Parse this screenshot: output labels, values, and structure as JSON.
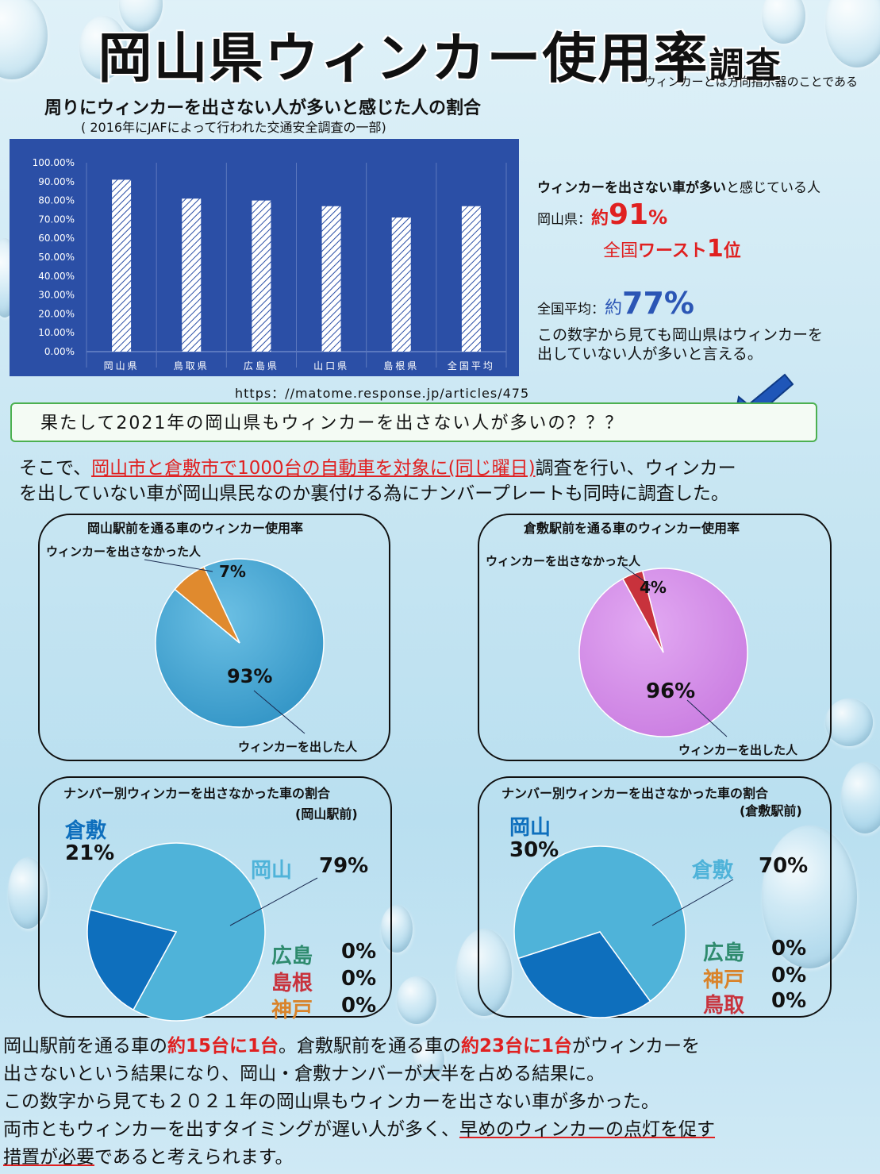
{
  "title": {
    "part1": "岡山県",
    "part2": "ウィンカー使用率",
    "part3": "調査"
  },
  "note": "ウィンカーとは方向指示器のことである",
  "chart_data": [
    {
      "type": "bar",
      "title": "周りにウィンカーを出さない人が多いと感じた人の割合",
      "subtitle": "( 2016年にJAFによって行われた交通安全調査の一部)",
      "categories": [
        "岡山県",
        "鳥取県",
        "広島県",
        "山口県",
        "島根県",
        "全国平均"
      ],
      "values": [
        91,
        81,
        80,
        77,
        71,
        77
      ],
      "yticks": [
        "100.00%",
        "90.00%",
        "80.00%",
        "70.00%",
        "60.00%",
        "50.00%",
        "40.00%",
        "30.00%",
        "20.00%",
        "10.00%",
        "0.00%"
      ],
      "ylim": [
        0,
        100
      ],
      "colors": {
        "background": "#2b4fa6",
        "bar": "#ffffff"
      }
    },
    {
      "type": "pie",
      "title": "岡山駅前を通る車のウィンカー使用率",
      "labels": [
        "ウィンカーを出した人",
        "ウィンカーを出さなかった人"
      ],
      "values": [
        93,
        7
      ],
      "value_labels": [
        "93%",
        "7%"
      ],
      "colors": [
        "#3aa0cf",
        "#e08a2e"
      ]
    },
    {
      "type": "pie",
      "title": "倉敷駅前を通る車のウィンカー使用率",
      "labels": [
        "ウィンカーを出した人",
        "ウィンカーを出さなかった人"
      ],
      "values": [
        96,
        4
      ],
      "value_labels": [
        "96%",
        "4%"
      ],
      "colors": [
        "#d58fe8",
        "#c8323c"
      ]
    },
    {
      "type": "pie",
      "title": "ナンバー別ウィンカーを出さなかった車の割合",
      "subtitle": "(岡山駅前)",
      "labels": [
        "岡山",
        "倉敷",
        "広島",
        "島根",
        "神戸"
      ],
      "values": [
        79,
        21,
        0,
        0,
        0
      ],
      "value_labels": [
        "79%",
        "21%",
        "0%",
        "0%",
        "0%"
      ],
      "colors": [
        "#4fb3d9",
        "#0e6fbd",
        "#2e8b6e",
        "#c8323c",
        "#d9832a"
      ]
    },
    {
      "type": "pie",
      "title": "ナンバー別ウィンカーを出さなかった車の割合",
      "subtitle": "(倉敷駅前)",
      "labels": [
        "倉敷",
        "岡山",
        "広島",
        "神戸",
        "鳥取"
      ],
      "values": [
        70,
        30,
        0,
        0,
        0
      ],
      "value_labels": [
        "70%",
        "30%",
        "0%",
        "0%",
        "0%"
      ],
      "colors": [
        "#4fb3d9",
        "#0e6fbd",
        "#2e8b6e",
        "#d9832a",
        "#c8323c"
      ]
    }
  ],
  "source": "https：//matome.response.jp/articles/475",
  "right_text": {
    "line1_bold": "ウィンカーを出さない車が多い",
    "line1_rest": "と感じている人",
    "okayama_label": "岡山県：",
    "okayama_prefix": "約",
    "okayama_value": "91",
    "okayama_unit": "%",
    "worst_prefix": "全国",
    "worst_bold": "ワースト",
    "worst_num": "1",
    "worst_suffix": "位",
    "avg_label": "全国平均：",
    "avg_prefix": "約",
    "avg_value": "77%",
    "conclusion1": "この数字から見ても岡山県はウィンカーを",
    "conclusion2": "出していない人が多いと言える。"
  },
  "question": "果たして2021年の岡山県もウィンカーを出さない人が多いの？？？",
  "method": {
    "p1a": "そこで、",
    "p1b": "岡山市と倉敷市で1000台の自動車を対象に(同じ曜日)",
    "p1c": "調査を行い、ウィンカー",
    "p2": "を出していない車が岡山県民なのか裏付ける為にナンバープレートも同時に調査した。"
  },
  "bottom": {
    "l1a": "岡山駅前を通る車の",
    "l1b": "約15台に1台",
    "l1c": "。倉敷駅前を通る車の",
    "l1d": "約23台に1台",
    "l1e": "がウィンカーを",
    "l2": "出さないという結果になり、岡山・倉敷ナンバーが大半を占める結果に。",
    "l3": "この数字から見ても２０２１年の岡山県もウィンカーを出さない車が多かった。",
    "l4a": "両市ともウィンカーを出すタイミングが遅い人が多く、",
    "l4b": "早めのウィンカーの点灯を促す",
    "l5a": "措置が必要",
    "l5b": "であると考えられます。"
  }
}
